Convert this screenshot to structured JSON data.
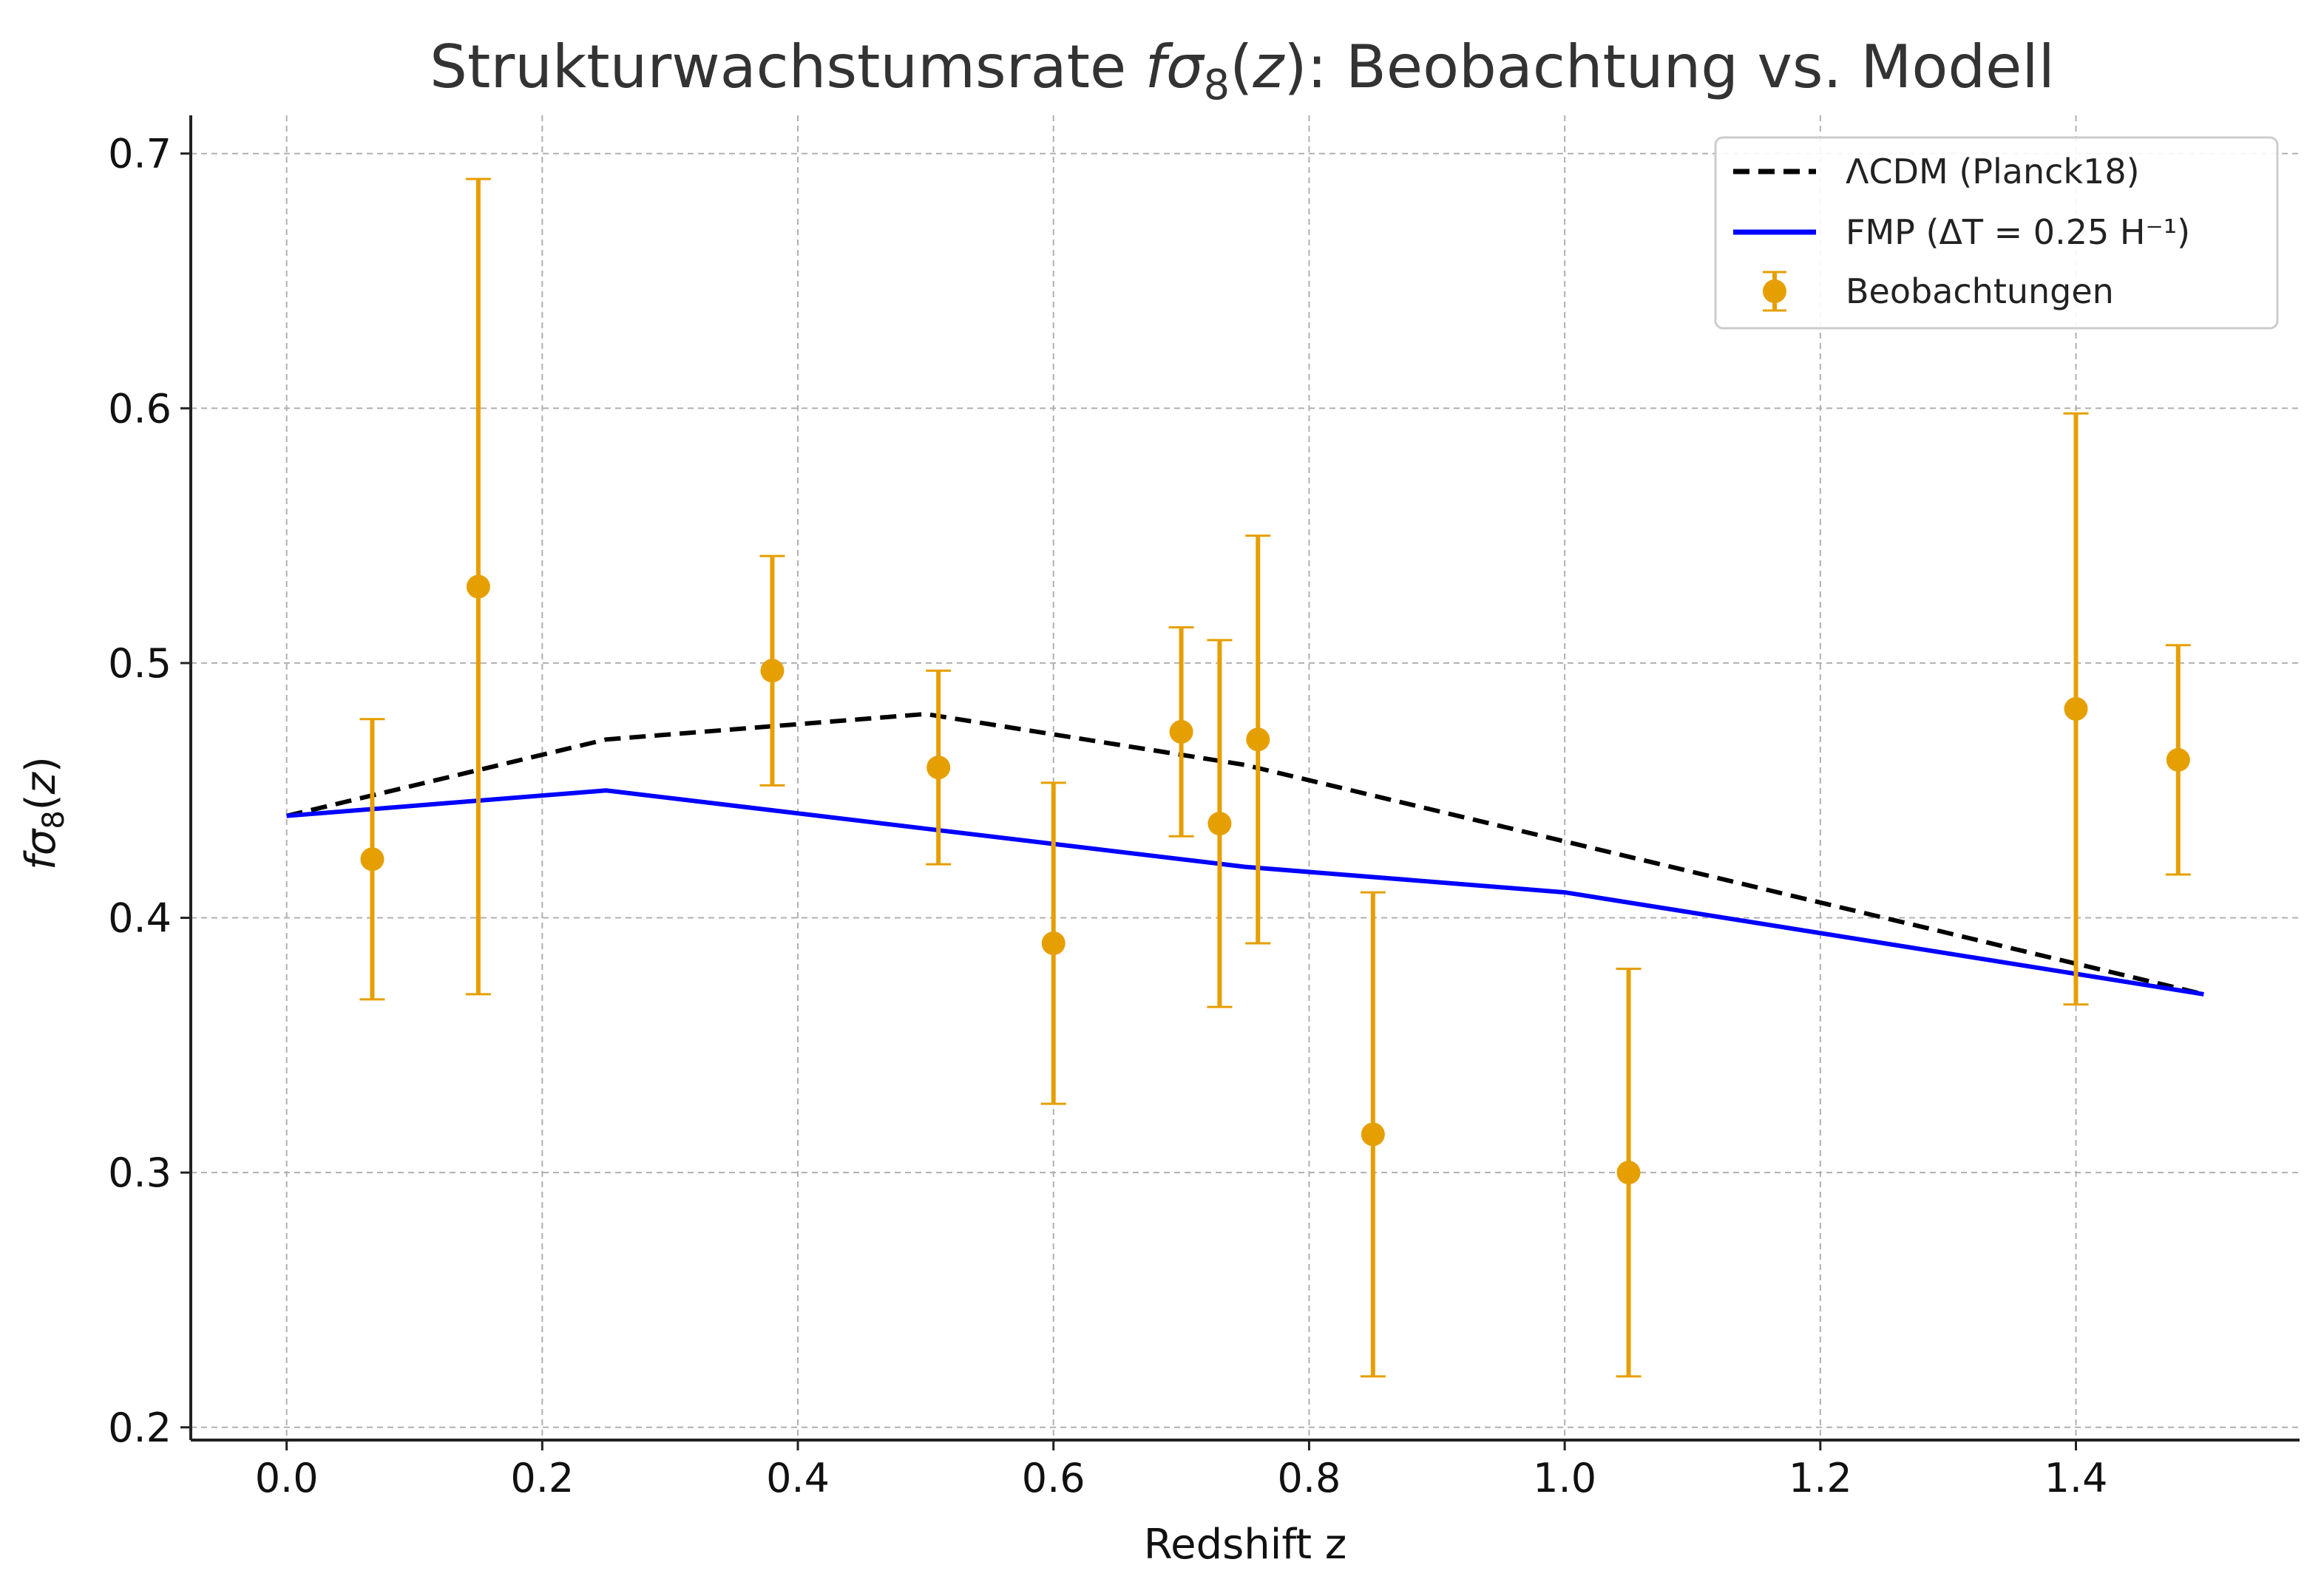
{
  "chart_data": {
    "type": "scatter",
    "title": {
      "prefix": "Strukturwachstumsrate ",
      "func": "f",
      "sym": "σ",
      "sub": "8",
      "open": "(",
      "var": "z",
      "close": ")",
      "suffix": ": Beobachtung vs. Modell"
    },
    "xlabel": "Redshift z",
    "ylabel": {
      "func": "f",
      "sym": "σ",
      "sub": "8",
      "open": "(",
      "var": "z",
      "close": ")"
    },
    "xlim": [
      -0.075,
      1.575
    ],
    "ylim": [
      0.195,
      0.715
    ],
    "xticks": [
      0.0,
      0.2,
      0.4,
      0.6,
      0.8,
      1.0,
      1.2,
      1.4
    ],
    "xtick_labels": [
      "0.0",
      "0.2",
      "0.4",
      "0.6",
      "0.8",
      "1.0",
      "1.2",
      "1.4"
    ],
    "yticks": [
      0.2,
      0.3,
      0.4,
      0.5,
      0.6,
      0.7
    ],
    "ytick_labels": [
      "0.2",
      "0.3",
      "0.4",
      "0.5",
      "0.6",
      "0.7"
    ],
    "grid": true,
    "legend_position": "top-right",
    "series": [
      {
        "name": "ΛCDM (Planck18)",
        "kind": "line",
        "style": "dashed",
        "color": "#000000",
        "x": [
          0.0,
          0.25,
          0.5,
          0.75,
          1.0,
          1.25,
          1.5
        ],
        "y": [
          0.44,
          0.47,
          0.48,
          0.46,
          0.43,
          0.4,
          0.37
        ]
      },
      {
        "name": "FMP (ΔT = 0.25 H⁻¹)",
        "kind": "line",
        "style": "solid",
        "color": "#0000ff",
        "x": [
          0.0,
          0.25,
          0.5,
          0.75,
          1.0,
          1.25,
          1.5
        ],
        "y": [
          0.44,
          0.45,
          0.435,
          0.42,
          0.41,
          0.39,
          0.37
        ]
      },
      {
        "name": "Beobachtungen",
        "kind": "errorbar",
        "color": "#e69f00",
        "points": [
          {
            "x": 0.067,
            "y": 0.423,
            "err": 0.055
          },
          {
            "x": 0.15,
            "y": 0.53,
            "err": 0.16
          },
          {
            "x": 0.38,
            "y": 0.497,
            "err": 0.045
          },
          {
            "x": 0.51,
            "y": 0.459,
            "err": 0.038
          },
          {
            "x": 0.6,
            "y": 0.39,
            "err": 0.063
          },
          {
            "x": 0.7,
            "y": 0.473,
            "err": 0.041
          },
          {
            "x": 0.73,
            "y": 0.437,
            "err": 0.072
          },
          {
            "x": 0.76,
            "y": 0.47,
            "err": 0.08
          },
          {
            "x": 0.85,
            "y": 0.315,
            "err": 0.095
          },
          {
            "x": 1.05,
            "y": 0.3,
            "err": 0.08
          },
          {
            "x": 1.4,
            "y": 0.482,
            "err": 0.116
          },
          {
            "x": 1.48,
            "y": 0.462,
            "err": 0.045
          }
        ]
      }
    ]
  }
}
